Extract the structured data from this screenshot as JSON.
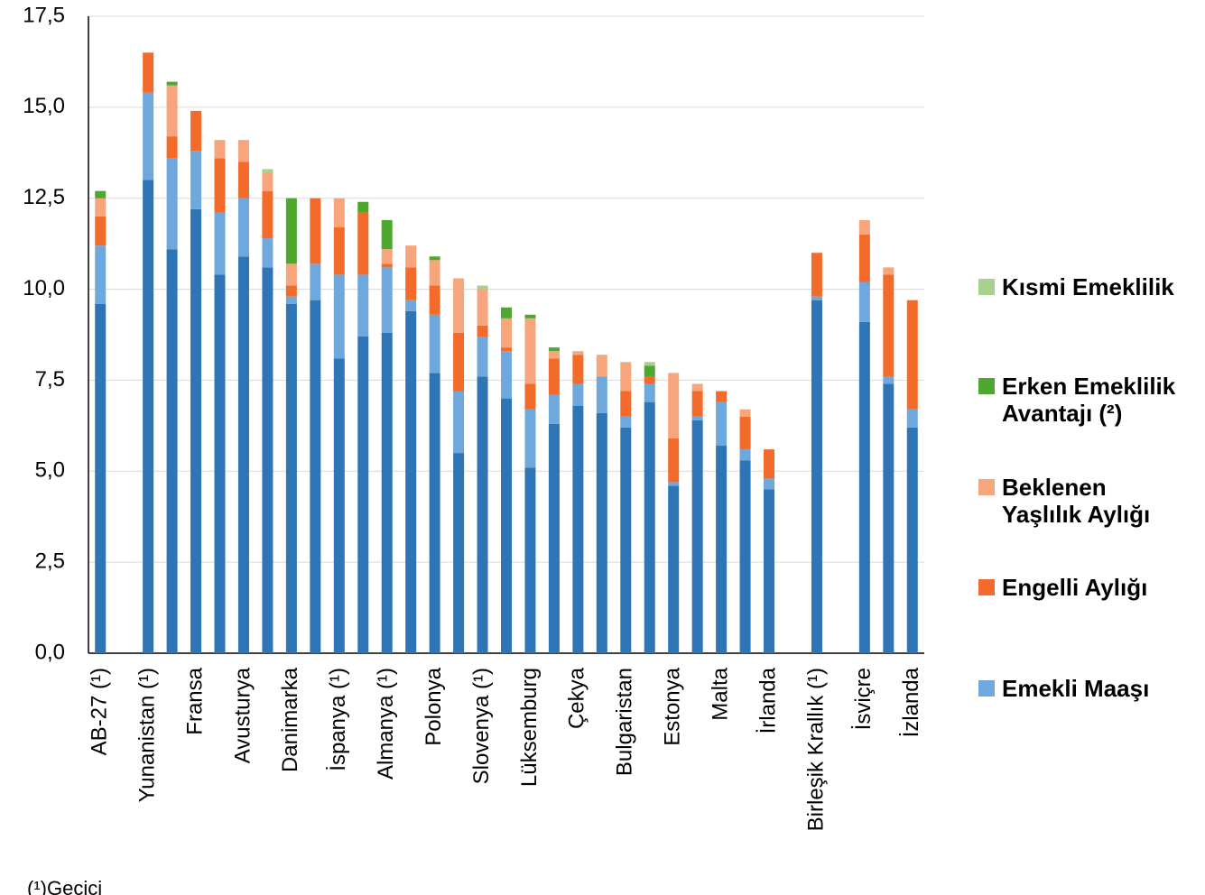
{
  "chart_data": {
    "type": "stacked-bar",
    "categories": [
      "AB-27 (¹)",
      null,
      "Yunanistan (¹)",
      null,
      "Fransa",
      null,
      "Avusturya",
      null,
      "Danimarka",
      null,
      "İspanya (¹)",
      null,
      "Almanya (¹)",
      null,
      "Polonya",
      null,
      "Slovenya (¹)",
      null,
      "Lüksemburg",
      null,
      "Çekya",
      null,
      "Bulgaristan",
      null,
      "Estonya",
      null,
      "Malta",
      null,
      "İrlanda",
      null,
      "Birleşik Krallık (¹)",
      null,
      "İsviçre",
      null,
      "İzlanda"
    ],
    "series": [
      {
        "color": "#2e75b6",
        "values": [
          9.6,
          null,
          13.0,
          11.1,
          12.2,
          10.4,
          10.9,
          10.6,
          9.6,
          9.7,
          8.1,
          8.7,
          8.8,
          9.4,
          7.7,
          5.5,
          7.6,
          7.0,
          5.1,
          6.3,
          6.8,
          6.6,
          6.2,
          6.9,
          4.6,
          6.4,
          5.7,
          5.3,
          4.5,
          null,
          9.7,
          null,
          9.1,
          7.4,
          6.2
        ]
      },
      {
        "name": "Emekli Maaşı",
        "color": "#6fa8dc",
        "values": [
          1.6,
          null,
          2.4,
          2.5,
          1.6,
          1.7,
          1.6,
          0.8,
          0.2,
          1.0,
          2.3,
          1.7,
          1.8,
          0.3,
          1.6,
          1.7,
          1.1,
          1.3,
          1.6,
          0.8,
          0.6,
          1.0,
          0.3,
          0.5,
          0.1,
          0.1,
          1.2,
          0.3,
          0.3,
          null,
          0.1,
          null,
          1.1,
          0.2,
          0.5
        ]
      },
      {
        "name": "Engelli Aylığı",
        "color": "#f26b2a",
        "values": [
          0.8,
          null,
          1.1,
          0.6,
          1.1,
          1.5,
          1.0,
          1.3,
          0.3,
          1.8,
          1.3,
          1.7,
          0.1,
          0.9,
          0.8,
          1.6,
          0.3,
          0.1,
          0.7,
          1.0,
          0.8,
          0,
          0.7,
          0.2,
          1.2,
          0.7,
          0.3,
          0.9,
          0.8,
          null,
          1.2,
          null,
          1.3,
          2.8,
          3.0
        ]
      },
      {
        "name": "Beklenen Yaşlılık Aylığı",
        "color": "#f7a57d",
        "values": [
          0.5,
          null,
          0,
          1.4,
          0,
          0.5,
          0.6,
          0.5,
          0.6,
          0,
          0.8,
          0,
          0.4,
          0.6,
          0.7,
          1.5,
          1.0,
          0.8,
          1.8,
          0.2,
          0.1,
          0.6,
          0.8,
          0,
          1.8,
          0.2,
          0,
          0.2,
          0,
          null,
          0,
          null,
          0.4,
          0.2,
          0
        ]
      },
      {
        "name": "Erken Emeklilik Avantajı (²)",
        "color": "#4ea72e",
        "values": [
          0.2,
          null,
          0,
          0.1,
          0,
          0,
          0,
          0,
          1.8,
          0,
          0,
          0.3,
          0.8,
          0,
          0.1,
          0,
          0,
          0.3,
          0.1,
          0.1,
          0,
          0,
          0,
          0.3,
          0,
          0,
          0,
          0,
          0,
          null,
          0,
          null,
          0,
          0,
          0
        ]
      },
      {
        "name": "Kısmi Emeklilik",
        "color": "#a9d18e",
        "values": [
          0,
          null,
          0,
          0,
          0,
          0,
          0,
          0.1,
          0,
          0,
          0,
          0,
          0,
          0,
          0,
          0,
          0.1,
          0,
          0,
          0,
          0,
          0,
          0,
          0.1,
          0,
          0,
          0,
          0,
          0,
          null,
          0,
          null,
          0,
          0,
          0
        ]
      }
    ],
    "ylim": [
      0,
      17.5
    ],
    "yticks": [
      {
        "value": 0,
        "label": "0,0"
      },
      {
        "value": 2.5,
        "label": "2,5"
      },
      {
        "value": 5,
        "label": "5,0"
      },
      {
        "value": 7.5,
        "label": "7,5"
      },
      {
        "value": 10,
        "label": "10,0"
      },
      {
        "value": 12.5,
        "label": "12,5"
      },
      {
        "value": 15,
        "label": "15,0"
      },
      {
        "value": 17.5,
        "label": "17,5"
      }
    ],
    "grid": true,
    "footnote": "(¹)Geçici"
  }
}
